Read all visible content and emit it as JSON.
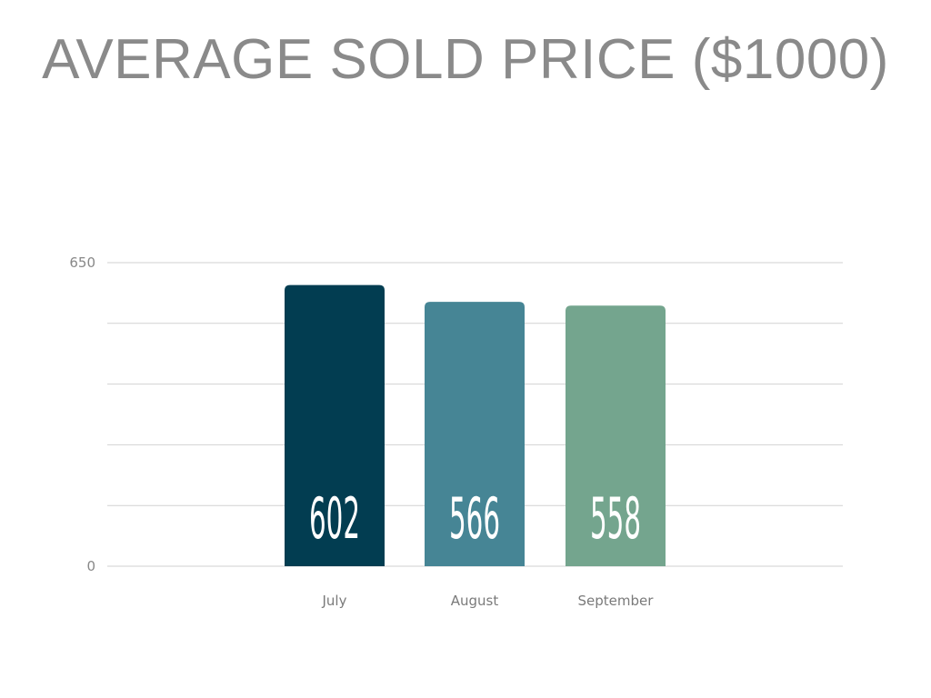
{
  "chart_data": {
    "type": "bar",
    "title": "AVERAGE SOLD PRICE ($1000)",
    "xlabel": "",
    "ylabel": "",
    "categories": [
      "July",
      "August",
      "September"
    ],
    "values": [
      602,
      566,
      558
    ],
    "data_labels": [
      "602",
      "566",
      "558"
    ],
    "ylim": [
      0,
      650
    ],
    "y_tick_labels": [
      "0",
      "650"
    ],
    "gridline_count": 6,
    "grid": true,
    "legend": "none",
    "colors": [
      "#023d51",
      "#468595",
      "#74a58e"
    ]
  }
}
